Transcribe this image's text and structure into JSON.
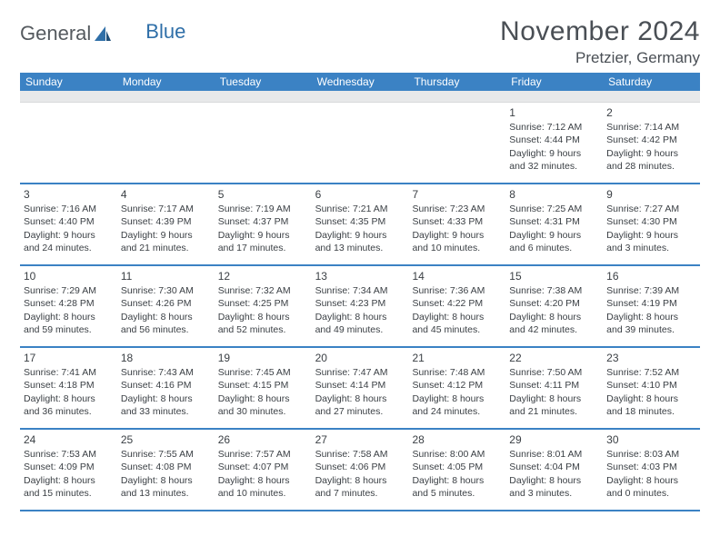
{
  "brand": {
    "part1": "General",
    "part2": "Blue"
  },
  "title": "November 2024",
  "location": "Pretzier, Germany",
  "colors": {
    "header_bg": "#3b82c4",
    "header_text": "#ffffff",
    "grey_strip": "#e8e9ea",
    "row_border": "#3b82c4",
    "text": "#3a3f44",
    "page_bg": "#ffffff",
    "logo_grey": "#555a5f",
    "logo_blue": "#2f6fa8"
  },
  "weekdays": [
    "Sunday",
    "Monday",
    "Tuesday",
    "Wednesday",
    "Thursday",
    "Friday",
    "Saturday"
  ],
  "weeks": [
    [
      {
        "day": "",
        "sunrise": "",
        "sunset": "",
        "daylight": ""
      },
      {
        "day": "",
        "sunrise": "",
        "sunset": "",
        "daylight": ""
      },
      {
        "day": "",
        "sunrise": "",
        "sunset": "",
        "daylight": ""
      },
      {
        "day": "",
        "sunrise": "",
        "sunset": "",
        "daylight": ""
      },
      {
        "day": "",
        "sunrise": "",
        "sunset": "",
        "daylight": ""
      },
      {
        "day": "1",
        "sunrise": "Sunrise: 7:12 AM",
        "sunset": "Sunset: 4:44 PM",
        "daylight": "Daylight: 9 hours and 32 minutes."
      },
      {
        "day": "2",
        "sunrise": "Sunrise: 7:14 AM",
        "sunset": "Sunset: 4:42 PM",
        "daylight": "Daylight: 9 hours and 28 minutes."
      }
    ],
    [
      {
        "day": "3",
        "sunrise": "Sunrise: 7:16 AM",
        "sunset": "Sunset: 4:40 PM",
        "daylight": "Daylight: 9 hours and 24 minutes."
      },
      {
        "day": "4",
        "sunrise": "Sunrise: 7:17 AM",
        "sunset": "Sunset: 4:39 PM",
        "daylight": "Daylight: 9 hours and 21 minutes."
      },
      {
        "day": "5",
        "sunrise": "Sunrise: 7:19 AM",
        "sunset": "Sunset: 4:37 PM",
        "daylight": "Daylight: 9 hours and 17 minutes."
      },
      {
        "day": "6",
        "sunrise": "Sunrise: 7:21 AM",
        "sunset": "Sunset: 4:35 PM",
        "daylight": "Daylight: 9 hours and 13 minutes."
      },
      {
        "day": "7",
        "sunrise": "Sunrise: 7:23 AM",
        "sunset": "Sunset: 4:33 PM",
        "daylight": "Daylight: 9 hours and 10 minutes."
      },
      {
        "day": "8",
        "sunrise": "Sunrise: 7:25 AM",
        "sunset": "Sunset: 4:31 PM",
        "daylight": "Daylight: 9 hours and 6 minutes."
      },
      {
        "day": "9",
        "sunrise": "Sunrise: 7:27 AM",
        "sunset": "Sunset: 4:30 PM",
        "daylight": "Daylight: 9 hours and 3 minutes."
      }
    ],
    [
      {
        "day": "10",
        "sunrise": "Sunrise: 7:29 AM",
        "sunset": "Sunset: 4:28 PM",
        "daylight": "Daylight: 8 hours and 59 minutes."
      },
      {
        "day": "11",
        "sunrise": "Sunrise: 7:30 AM",
        "sunset": "Sunset: 4:26 PM",
        "daylight": "Daylight: 8 hours and 56 minutes."
      },
      {
        "day": "12",
        "sunrise": "Sunrise: 7:32 AM",
        "sunset": "Sunset: 4:25 PM",
        "daylight": "Daylight: 8 hours and 52 minutes."
      },
      {
        "day": "13",
        "sunrise": "Sunrise: 7:34 AM",
        "sunset": "Sunset: 4:23 PM",
        "daylight": "Daylight: 8 hours and 49 minutes."
      },
      {
        "day": "14",
        "sunrise": "Sunrise: 7:36 AM",
        "sunset": "Sunset: 4:22 PM",
        "daylight": "Daylight: 8 hours and 45 minutes."
      },
      {
        "day": "15",
        "sunrise": "Sunrise: 7:38 AM",
        "sunset": "Sunset: 4:20 PM",
        "daylight": "Daylight: 8 hours and 42 minutes."
      },
      {
        "day": "16",
        "sunrise": "Sunrise: 7:39 AM",
        "sunset": "Sunset: 4:19 PM",
        "daylight": "Daylight: 8 hours and 39 minutes."
      }
    ],
    [
      {
        "day": "17",
        "sunrise": "Sunrise: 7:41 AM",
        "sunset": "Sunset: 4:18 PM",
        "daylight": "Daylight: 8 hours and 36 minutes."
      },
      {
        "day": "18",
        "sunrise": "Sunrise: 7:43 AM",
        "sunset": "Sunset: 4:16 PM",
        "daylight": "Daylight: 8 hours and 33 minutes."
      },
      {
        "day": "19",
        "sunrise": "Sunrise: 7:45 AM",
        "sunset": "Sunset: 4:15 PM",
        "daylight": "Daylight: 8 hours and 30 minutes."
      },
      {
        "day": "20",
        "sunrise": "Sunrise: 7:47 AM",
        "sunset": "Sunset: 4:14 PM",
        "daylight": "Daylight: 8 hours and 27 minutes."
      },
      {
        "day": "21",
        "sunrise": "Sunrise: 7:48 AM",
        "sunset": "Sunset: 4:12 PM",
        "daylight": "Daylight: 8 hours and 24 minutes."
      },
      {
        "day": "22",
        "sunrise": "Sunrise: 7:50 AM",
        "sunset": "Sunset: 4:11 PM",
        "daylight": "Daylight: 8 hours and 21 minutes."
      },
      {
        "day": "23",
        "sunrise": "Sunrise: 7:52 AM",
        "sunset": "Sunset: 4:10 PM",
        "daylight": "Daylight: 8 hours and 18 minutes."
      }
    ],
    [
      {
        "day": "24",
        "sunrise": "Sunrise: 7:53 AM",
        "sunset": "Sunset: 4:09 PM",
        "daylight": "Daylight: 8 hours and 15 minutes."
      },
      {
        "day": "25",
        "sunrise": "Sunrise: 7:55 AM",
        "sunset": "Sunset: 4:08 PM",
        "daylight": "Daylight: 8 hours and 13 minutes."
      },
      {
        "day": "26",
        "sunrise": "Sunrise: 7:57 AM",
        "sunset": "Sunset: 4:07 PM",
        "daylight": "Daylight: 8 hours and 10 minutes."
      },
      {
        "day": "27",
        "sunrise": "Sunrise: 7:58 AM",
        "sunset": "Sunset: 4:06 PM",
        "daylight": "Daylight: 8 hours and 7 minutes."
      },
      {
        "day": "28",
        "sunrise": "Sunrise: 8:00 AM",
        "sunset": "Sunset: 4:05 PM",
        "daylight": "Daylight: 8 hours and 5 minutes."
      },
      {
        "day": "29",
        "sunrise": "Sunrise: 8:01 AM",
        "sunset": "Sunset: 4:04 PM",
        "daylight": "Daylight: 8 hours and 3 minutes."
      },
      {
        "day": "30",
        "sunrise": "Sunrise: 8:03 AM",
        "sunset": "Sunset: 4:03 PM",
        "daylight": "Daylight: 8 hours and 0 minutes."
      }
    ]
  ]
}
